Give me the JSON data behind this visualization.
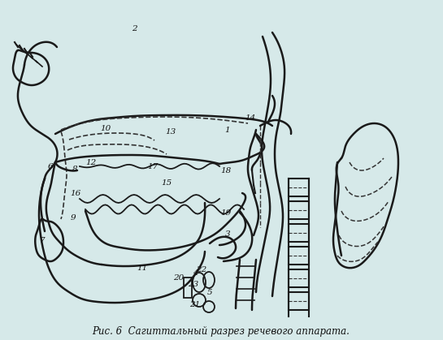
{
  "title": "",
  "caption": "Рис. 6  Сагиттальный разрез речевого аппарата.",
  "bg_color": "#d6e9e9",
  "line_color": "#1a1a1a",
  "dashed_color": "#333333",
  "label_color": "#111111",
  "label_fontsize": 7.5,
  "caption_fontsize": 8.5,
  "figsize": [
    5.45,
    4.19
  ],
  "dpi": 100
}
